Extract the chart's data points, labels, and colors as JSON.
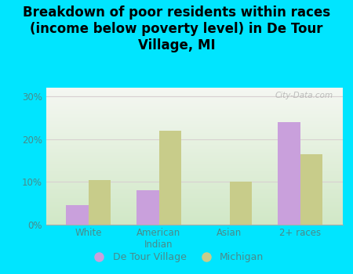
{
  "categories": [
    "White",
    "American\nIndian",
    "Asian",
    "2+ races"
  ],
  "detour_values": [
    4.5,
    8.0,
    0.0,
    24.0
  ],
  "michigan_values": [
    10.5,
    22.0,
    10.0,
    16.5
  ],
  "detour_color": "#c9a0dc",
  "michigan_color": "#c8cc8a",
  "title": "Breakdown of poor residents within races\n(income below poverty level) in De Tour\nVillage, MI",
  "title_fontsize": 12,
  "title_fontweight": "bold",
  "ylim": [
    0,
    32
  ],
  "yticks": [
    0,
    10,
    20,
    30
  ],
  "ytick_labels": [
    "0%",
    "10%",
    "20%",
    "30%"
  ],
  "background_outer": "#00e5ff",
  "background_inner_top": "#f5f5f0",
  "background_inner_bottom": "#d4e8c8",
  "legend_label_detour": "De Tour Village",
  "legend_label_michigan": "Michigan",
  "bar_width": 0.32,
  "watermark": "City-Data.com",
  "tick_color": "#4a8a8a",
  "grid_color": "#d8d0d0"
}
